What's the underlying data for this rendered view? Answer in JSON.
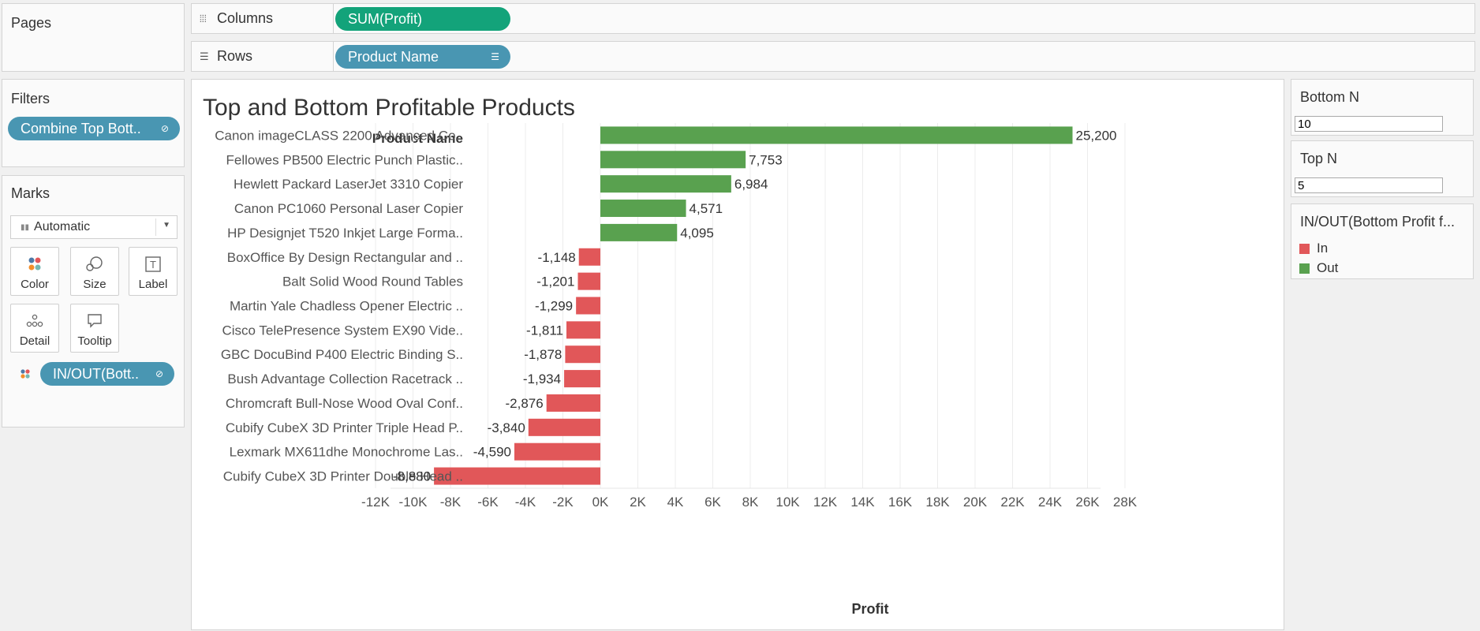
{
  "pages": {
    "title": "Pages"
  },
  "columns": {
    "label": "Columns",
    "icon": "columns-icon",
    "pill": "SUM(Profit)"
  },
  "rows": {
    "label": "Rows",
    "icon": "rows-icon",
    "pill": "Product Name"
  },
  "filters": {
    "title": "Filters",
    "pill": "Combine Top Bott.."
  },
  "marks": {
    "title": "Marks",
    "type": "Automatic",
    "buttons": {
      "color": "Color",
      "size": "Size",
      "label": "Label",
      "detail": "Detail",
      "tooltip": "Tooltip"
    },
    "field_pill": "IN/OUT(Bott.."
  },
  "params": {
    "bottom_n": {
      "title": "Bottom N",
      "value": "10"
    },
    "top_n": {
      "title": "Top N",
      "value": "5"
    }
  },
  "legend": {
    "title": "IN/OUT(Bottom Profit f...",
    "items": [
      {
        "label": "In",
        "color": "#e15759"
      },
      {
        "label": "Out",
        "color": "#59a14f"
      }
    ]
  },
  "colors": {
    "green_pill": "#13a37a",
    "blue_pill": "#4996b2"
  },
  "chart_data": {
    "type": "bar",
    "title": "Top and Bottom Profitable Products",
    "row_header": "Product Name",
    "xlabel": "Profit",
    "xlim": [
      -13000,
      30000
    ],
    "x_ticks": [
      -12000,
      -10000,
      -8000,
      -6000,
      -4000,
      -2000,
      0,
      2000,
      4000,
      6000,
      8000,
      10000,
      12000,
      14000,
      16000,
      18000,
      20000,
      22000,
      24000,
      26000,
      28000
    ],
    "x_tick_labels": [
      "-12K",
      "-10K",
      "-8K",
      "-6K",
      "-4K",
      "-2K",
      "0K",
      "2K",
      "4K",
      "6K",
      "8K",
      "10K",
      "12K",
      "14K",
      "16K",
      "18K",
      "20K",
      "22K",
      "24K",
      "26K",
      "28K"
    ],
    "categories": [
      "Canon imageCLASS 2200 Advanced Co..",
      "Fellowes PB500 Electric Punch Plastic..",
      "Hewlett Packard LaserJet 3310 Copier",
      "Canon PC1060 Personal Laser Copier",
      "HP Designjet T520 Inkjet Large Forma..",
      "BoxOffice By Design Rectangular and ..",
      "Balt Solid Wood Round Tables",
      "Martin Yale Chadless Opener Electric ..",
      "Cisco TelePresence System EX90 Vide..",
      "GBC DocuBind P400 Electric Binding S..",
      "Bush Advantage Collection Racetrack ..",
      "Chromcraft Bull-Nose Wood Oval Conf..",
      "Cubify CubeX 3D Printer Triple Head P..",
      "Lexmark MX611dhe Monochrome Las..",
      "Cubify CubeX 3D Printer Double Head .."
    ],
    "values": [
      25200,
      7753,
      6984,
      4571,
      4095,
      -1148,
      -1201,
      -1299,
      -1811,
      -1878,
      -1934,
      -2876,
      -3840,
      -4590,
      -8880
    ],
    "value_labels": [
      "25,200",
      "7,753",
      "6,984",
      "4,571",
      "4,095",
      "-1,148",
      "-1,201",
      "-1,299",
      "-1,811",
      "-1,878",
      "-1,934",
      "-2,876",
      "-3,840",
      "-4,590",
      "-8,880"
    ],
    "group": [
      "Out",
      "Out",
      "Out",
      "Out",
      "Out",
      "In",
      "In",
      "In",
      "In",
      "In",
      "In",
      "In",
      "In",
      "In",
      "In"
    ],
    "grid": true
  }
}
